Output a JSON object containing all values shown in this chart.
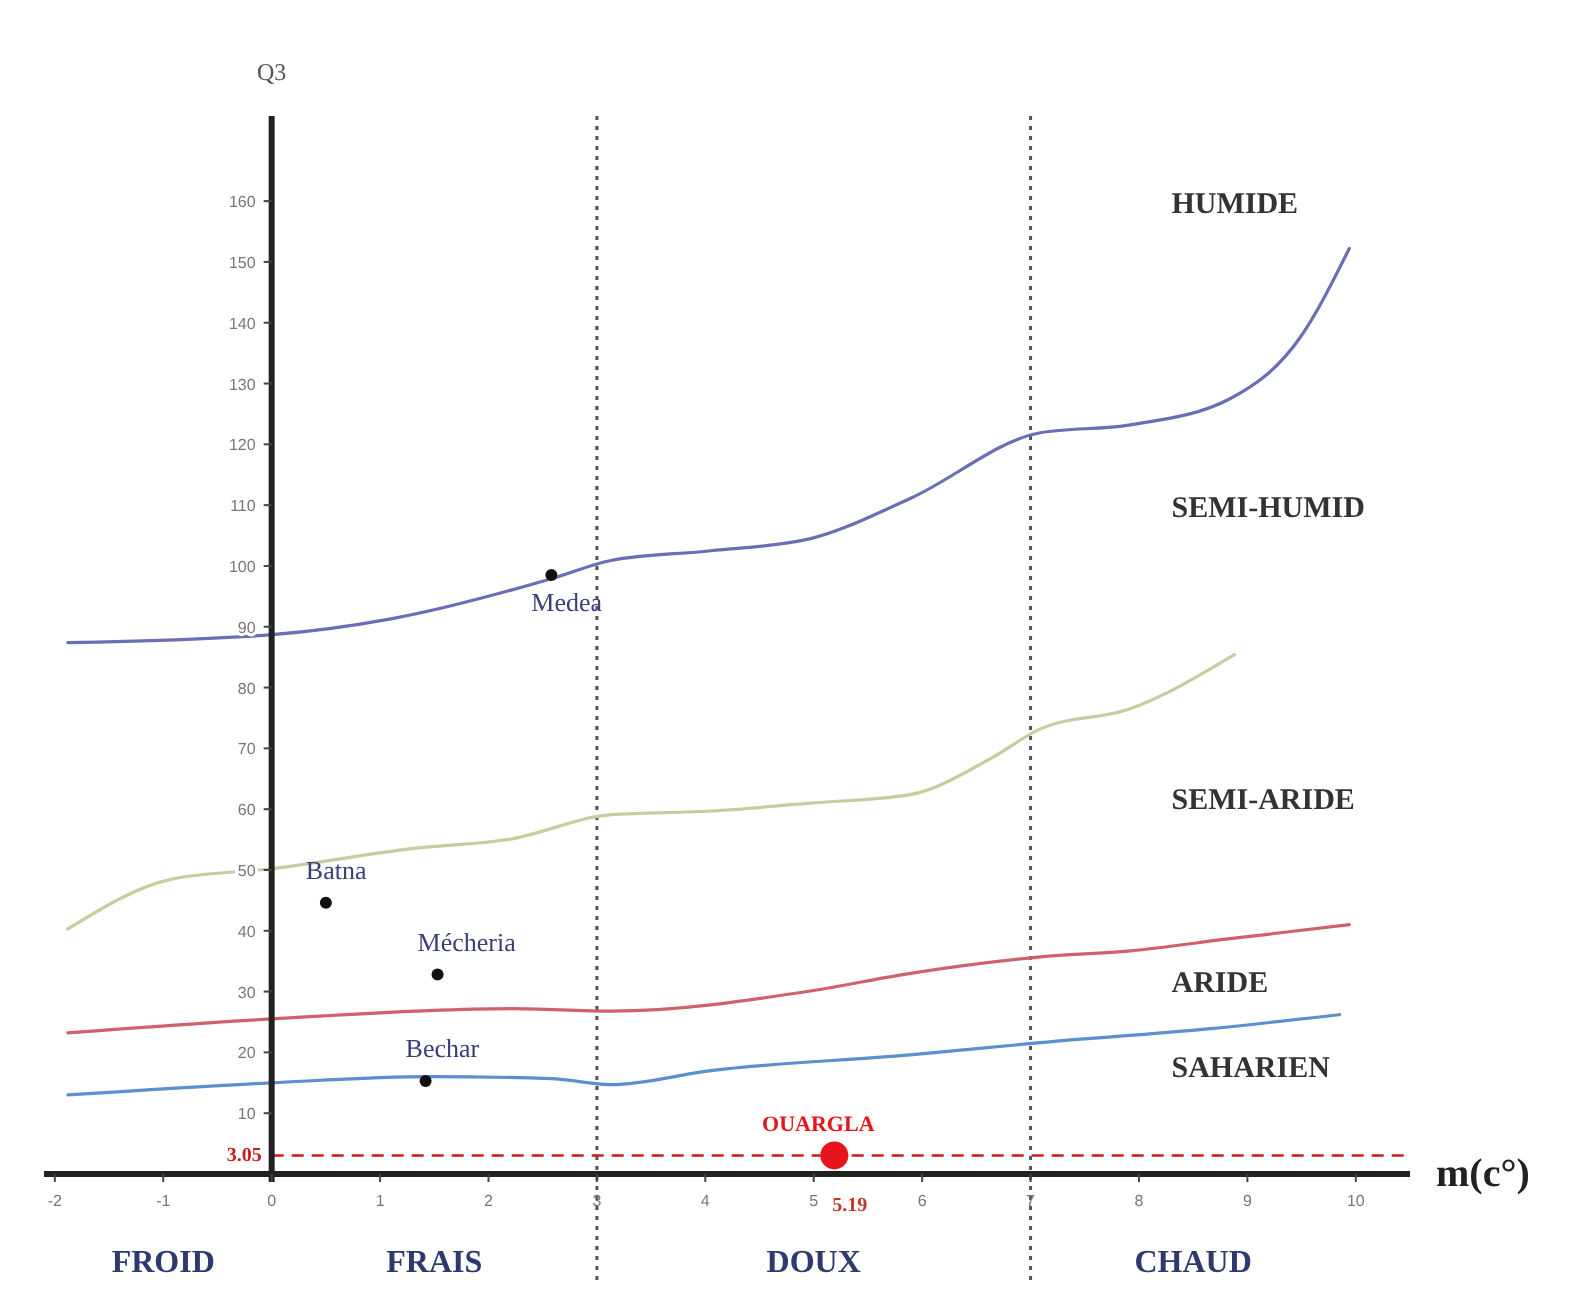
{
  "chart_data": {
    "type": "line",
    "ylabel": "Q3",
    "xlabel": "m(c°)",
    "xlim": [
      -2.1,
      10.5
    ],
    "ylim": [
      0,
      174
    ],
    "xticks": [
      -2,
      -1,
      0,
      1,
      2,
      3,
      4,
      5,
      6,
      7,
      8,
      9,
      10
    ],
    "yticks": [
      10,
      20,
      30,
      40,
      50,
      60,
      70,
      80,
      90,
      100,
      110,
      120,
      130,
      140,
      150,
      160
    ],
    "grid": false,
    "legend": false,
    "line_style": "solid",
    "marker": "none",
    "series": [
      {
        "color": "#6a6fb5",
        "x": [
          -1.88,
          0,
          1.1,
          2.58,
          3.13,
          4.05,
          4.97,
          5.89,
          7.09,
          7.92,
          8.84,
          9.48,
          9.94
        ],
        "values": [
          87.4,
          88.7,
          91.3,
          97.9,
          100.9,
          102.5,
          104.5,
          111.1,
          121.9,
          123.2,
          127.5,
          137.4,
          152.2
        ]
      },
      {
        "color": "#c9cc9c",
        "x": [
          -1.88,
          -0.92,
          0,
          1.29,
          2.21,
          3.13,
          4.05,
          4.97,
          5.89,
          6.63,
          7.09,
          7.92,
          8.88
        ],
        "values": [
          40.3,
          48.5,
          50.2,
          53.5,
          55.1,
          59.1,
          59.7,
          61.0,
          62.4,
          68.3,
          73.2,
          76.5,
          85.4
        ]
      },
      {
        "color": "#d0606e",
        "x": [
          -1.88,
          0,
          2.21,
          3.13,
          4.97,
          5.89,
          7.09,
          7.92,
          8.84,
          9.94
        ],
        "values": [
          23.2,
          25.5,
          27.2,
          26.8,
          30.1,
          33.0,
          35.7,
          36.7,
          38.7,
          41.0
        ]
      },
      {
        "color": "#5b8fd0",
        "x": [
          -1.88,
          0,
          1.47,
          2.58,
          3.13,
          4.05,
          5.89,
          7.09,
          8.66,
          9.85
        ],
        "values": [
          13.0,
          15.0,
          16.0,
          15.7,
          14.7,
          17.0,
          19.6,
          21.6,
          23.9,
          26.2
        ]
      },
      {
        "type": "scatter",
        "name": "Medea",
        "color": "#111111",
        "marker": "circle",
        "x": [
          2.58
        ],
        "values": [
          98.5
        ]
      },
      {
        "type": "scatter",
        "name": "Batna",
        "color": "#111111",
        "marker": "circle",
        "x": [
          0.5
        ],
        "values": [
          44.6
        ]
      },
      {
        "type": "scatter",
        "name": "Mécheria",
        "color": "#111111",
        "marker": "circle",
        "x": [
          1.53
        ],
        "values": [
          32.8
        ]
      },
      {
        "type": "scatter",
        "name": "Bechar",
        "color": "#111111",
        "marker": "circle",
        "x": [
          1.42
        ],
        "values": [
          15.3
        ]
      },
      {
        "type": "scatter",
        "name": "OUARGLA",
        "color": "#e8141c",
        "marker": "circle",
        "x": [
          5.19
        ],
        "values": [
          3.05
        ]
      }
    ],
    "ref_lines": [
      {
        "axis": "x",
        "value": 3,
        "line_style": "dotted",
        "color": "#555555"
      },
      {
        "axis": "x",
        "value": 7,
        "line_style": "dotted",
        "color": "#555555"
      },
      {
        "axis": "y",
        "value": 3.05,
        "label": "3.05",
        "line_style": "dashed",
        "color": "#d01a1a"
      }
    ],
    "annotations": [
      "HUMIDE",
      "SEMI-HUMID",
      "SEMI-ARIDE",
      "ARIDE",
      "SAHARIEN",
      "FROID",
      "FRAIS",
      "DOUX",
      "CHAUD",
      {
        "text": "5.19",
        "x": 5.19,
        "y": 3.05
      }
    ]
  }
}
